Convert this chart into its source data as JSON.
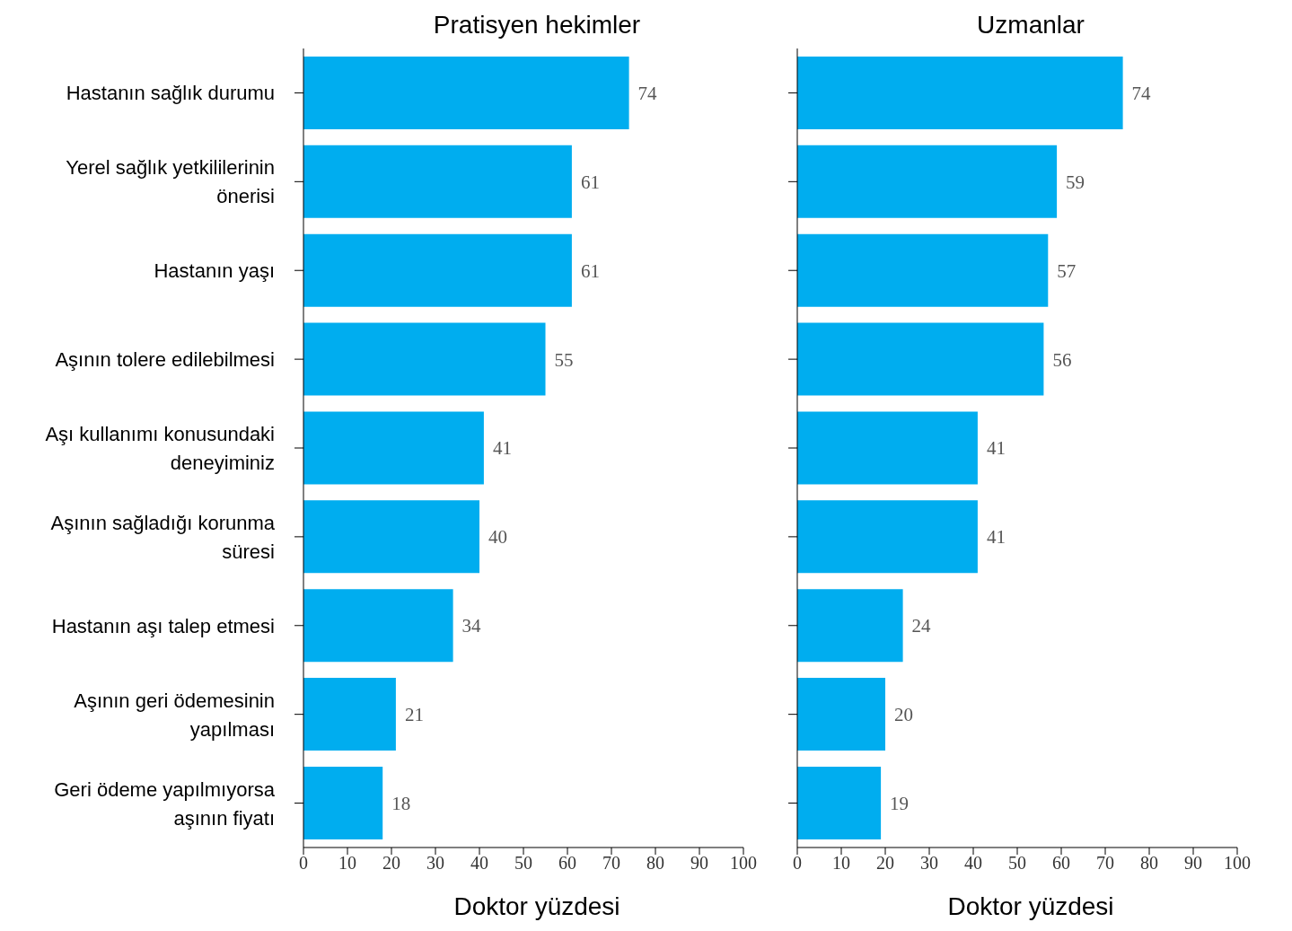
{
  "chart_data": [
    {
      "type": "bar",
      "orientation": "horizontal",
      "title": "Pratisyen hekimler",
      "xlabel": "Doktor yüzdesi",
      "categories": [
        "Hastanın sağlık durumu",
        "Yerel sağlık yetkililerinin önerisi",
        "Hastanın yaşı",
        "Aşının tolere edilebilmesi",
        "Aşı kullanımı konusundaki deneyiminiz",
        "Aşının sağladığı korunma süresi",
        "Hastanın aşı talep etmesi",
        "Aşının geri ödemesinin yapılması",
        "Geri ödeme yapılmıyorsa aşının fiyatı"
      ],
      "values": [
        74,
        61,
        61,
        55,
        41,
        40,
        34,
        21,
        18
      ],
      "color": "#00adef",
      "xlim": [
        0,
        100
      ],
      "xticks": [
        0,
        10,
        20,
        30,
        40,
        50,
        60,
        70,
        80,
        90,
        100
      ],
      "data_labels": true
    },
    {
      "type": "bar",
      "orientation": "horizontal",
      "title": "Uzmanlar",
      "xlabel": "Doktor yüzdesi",
      "categories": [
        null,
        null,
        null,
        null,
        null,
        null,
        null,
        null,
        null
      ],
      "values": [
        74,
        59,
        57,
        56,
        41,
        41,
        24,
        20,
        19
      ],
      "color": "#00adef",
      "xlim": [
        0,
        100
      ],
      "xticks": [
        0,
        10,
        20,
        30,
        40,
        50,
        60,
        70,
        80,
        90,
        100
      ],
      "data_labels": true,
      "tick_labels": "x"
    }
  ]
}
